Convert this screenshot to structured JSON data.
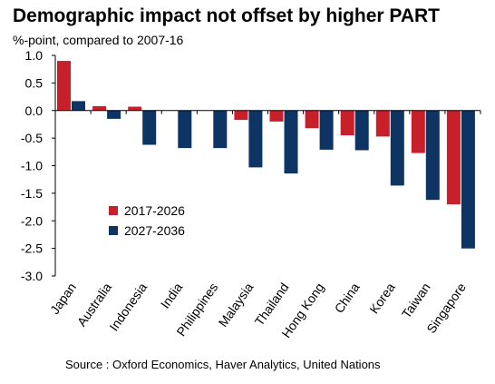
{
  "title": "Demographic impact not offset by higher PART",
  "subtitle": "%-point, compared to 2007-16",
  "source": "Source : Oxford Economics, Haver Analytics, United Nations",
  "colors": {
    "series_2017_2026": "#c8202a",
    "series_2027_2036": "#0d3463"
  },
  "chart_data": {
    "type": "bar",
    "categories": [
      "Japan",
      "Australia",
      "Indonesia",
      "India",
      "Philippines",
      "Malaysia",
      "Thailand",
      "Hong Kong",
      "China",
      "Korea",
      "Taiwan",
      "Singapore"
    ],
    "series": [
      {
        "name": "2017-2026",
        "values": [
          0.9,
          0.08,
          0.07,
          0.0,
          0.0,
          -0.17,
          -0.2,
          -0.32,
          -0.45,
          -0.47,
          -0.77,
          -1.7
        ]
      },
      {
        "name": "2027-2036",
        "values": [
          0.17,
          -0.15,
          -0.62,
          -0.68,
          -0.68,
          -1.03,
          -1.14,
          -0.71,
          -0.72,
          -1.36,
          -1.62,
          -2.5
        ]
      }
    ],
    "yticks": [
      "1.0",
      "0.5",
      "0.0",
      "-0.5",
      "-1.0",
      "-1.5",
      "-2.0",
      "-2.5",
      "-3.0"
    ],
    "ylim": [
      -3.0,
      1.0
    ],
    "legend_position": "lower-left inside plot",
    "grid": false
  }
}
